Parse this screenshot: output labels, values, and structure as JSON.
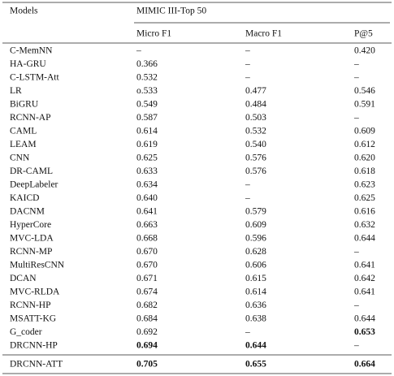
{
  "table": {
    "group_header": "MIMIC III-Top 50",
    "columns": [
      "Models",
      "Micro F1",
      "Macro F1",
      "P@5"
    ],
    "rows": [
      [
        "C-MemNN",
        "–",
        "–",
        "0.420"
      ],
      [
        "HA-GRU",
        "0.366",
        "–",
        "–"
      ],
      [
        "C-LSTM-Att",
        "0.532",
        "–",
        "–"
      ],
      [
        "LR",
        "o.533",
        "0.477",
        "0.546"
      ],
      [
        "BiGRU",
        "0.549",
        "0.484",
        "0.591"
      ],
      [
        "RCNN-AP",
        "0.587",
        "0.503",
        "–"
      ],
      [
        "CAML",
        "0.614",
        "0.532",
        "0.609"
      ],
      [
        "LEAM",
        "0.619",
        "0.540",
        "0.612"
      ],
      [
        "CNN",
        "0.625",
        "0.576",
        "0.620"
      ],
      [
        "DR-CAML",
        "0.633",
        "0.576",
        "0.618"
      ],
      [
        "DeepLabeler",
        "0.634",
        "–",
        "0.623"
      ],
      [
        "KAICD",
        "0.640",
        "–",
        "0.625"
      ],
      [
        "DACNM",
        "0.641",
        "0.579",
        "0.616"
      ],
      [
        "HyperCore",
        "0.663",
        "0.609",
        "0.632"
      ],
      [
        "MVC-LDA",
        "0.668",
        "0.596",
        "0.644"
      ],
      [
        "RCNN-MP",
        "0.670",
        "0.628",
        "–"
      ],
      [
        "MultiResCNN",
        "0.670",
        "0.606",
        "0.641"
      ],
      [
        "DCAN",
        "0.671",
        "0.615",
        "0.642"
      ],
      [
        "MVC-RLDA",
        "0.674",
        "0.614",
        "0.641"
      ],
      [
        "RCNN-HP",
        "0.682",
        "0.636",
        "–"
      ],
      [
        "MSATT-KG",
        "0.684",
        "0.638",
        "0.644"
      ],
      [
        "G_coder",
        "0.692",
        "–",
        "0.653"
      ],
      [
        "DRCNN-HP",
        "0.694",
        "0.644",
        "–"
      ],
      [
        "DRCNN-ATT",
        "0.705",
        "0.655",
        "0.664"
      ]
    ]
  }
}
